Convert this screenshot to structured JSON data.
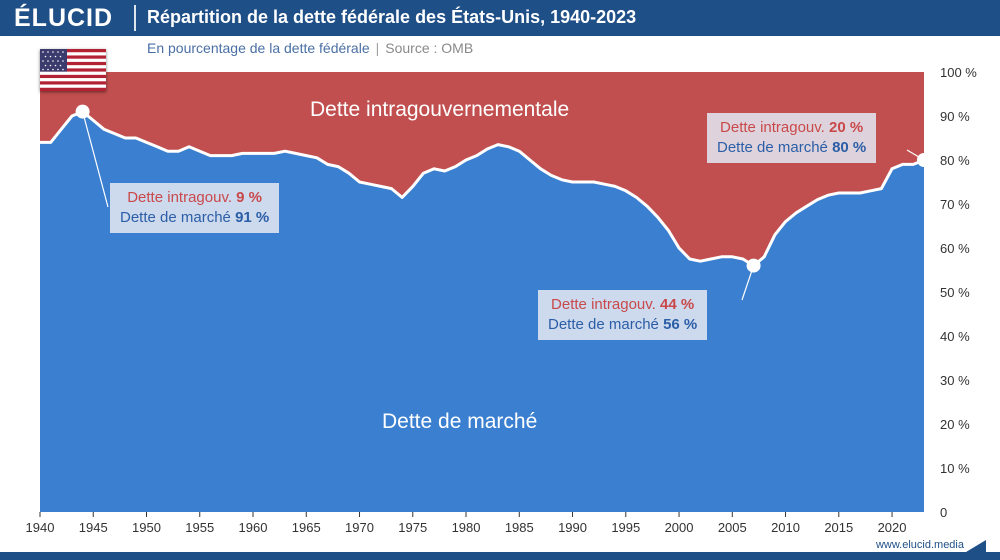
{
  "brand": {
    "logo_text": "ÉLUCID",
    "website": "www.elucid.media"
  },
  "header": {
    "title": "Répartition de la dette fédérale des États-Unis, 1940-2023",
    "subtitle": "En pourcentage de la dette fédérale",
    "source": "Source : OMB"
  },
  "colors": {
    "header": "#1f4f87",
    "market": "#3a7fd0",
    "intragov": "#c24f4f",
    "line": "#ffffff"
  },
  "flag_icon": "us-flag-icon",
  "area_labels": {
    "top": "Dette intragouvernementale",
    "bottom": "Dette de marché"
  },
  "annotations": [
    {
      "line1": "Dette intragouv. ",
      "v1": "9 %",
      "line2": "Dette de marché ",
      "v2": "91 %",
      "year": 1944
    },
    {
      "line1": "Dette intragouv. ",
      "v1": "44 %",
      "line2": "Dette de marché ",
      "v2": "56 %",
      "year": 2007
    },
    {
      "line1": "Dette intragouv. ",
      "v1": "20 %",
      "line2": "Dette de marché ",
      "v2": "80 %",
      "year": 2023
    }
  ],
  "chart_data": {
    "type": "area",
    "title": "Répartition de la dette fédérale des États-Unis, 1940-2023",
    "subtitle": "En pourcentage de la dette fédérale",
    "xlim": [
      1940,
      2023
    ],
    "ylim": [
      0,
      100
    ],
    "x_ticks": [
      1940,
      1945,
      1950,
      1955,
      1960,
      1965,
      1970,
      1975,
      1980,
      1985,
      1990,
      1995,
      2000,
      2005,
      2010,
      2015,
      2020
    ],
    "y_ticks": [
      "0",
      "10 %",
      "20 %",
      "30 %",
      "40 %",
      "50 %",
      "60 %",
      "70 %",
      "80 %",
      "90 %",
      "100 %"
    ],
    "y_tick_values": [
      0,
      10,
      20,
      30,
      40,
      50,
      60,
      70,
      80,
      90,
      100
    ],
    "x": [
      1940,
      1941,
      1942,
      1943,
      1944,
      1945,
      1946,
      1947,
      1948,
      1949,
      1950,
      1951,
      1952,
      1953,
      1954,
      1955,
      1956,
      1957,
      1958,
      1959,
      1960,
      1961,
      1962,
      1963,
      1964,
      1965,
      1966,
      1967,
      1968,
      1969,
      1970,
      1971,
      1972,
      1973,
      1974,
      1975,
      1976,
      1977,
      1978,
      1979,
      1980,
      1981,
      1982,
      1983,
      1984,
      1985,
      1986,
      1987,
      1988,
      1989,
      1990,
      1991,
      1992,
      1993,
      1994,
      1995,
      1996,
      1997,
      1998,
      1999,
      2000,
      2001,
      2002,
      2003,
      2004,
      2005,
      2006,
      2007,
      2008,
      2009,
      2010,
      2011,
      2012,
      2013,
      2014,
      2015,
      2016,
      2017,
      2018,
      2019,
      2020,
      2021,
      2022,
      2023
    ],
    "series": [
      {
        "name": "Dette de marché",
        "values": [
          84,
          84,
          87,
          90,
          91,
          89,
          87,
          86,
          85,
          85,
          84,
          83,
          82,
          82,
          83,
          82,
          81,
          81,
          81,
          81.5,
          81.5,
          81.5,
          81.5,
          82,
          81.5,
          81,
          80.5,
          79,
          78.5,
          77,
          75,
          74.5,
          74,
          73.5,
          71.5,
          74,
          77,
          78,
          77.5,
          78.5,
          80,
          81,
          82.5,
          83.5,
          83,
          82,
          80,
          78,
          76.5,
          75.5,
          75,
          75,
          75,
          74.5,
          74,
          73,
          71.5,
          69.5,
          67,
          64,
          60,
          57.5,
          57,
          57.5,
          58,
          58,
          57.5,
          56,
          58,
          63,
          66,
          68,
          69.5,
          71,
          72,
          72.5,
          72.5,
          72.5,
          73,
          73.5,
          78,
          79,
          79,
          80
        ]
      },
      {
        "name": "Dette intragouvernementale",
        "values": [
          16,
          16,
          13,
          10,
          9,
          11,
          13,
          14,
          15,
          15,
          16,
          17,
          18,
          18,
          17,
          18,
          19,
          19,
          19,
          18.5,
          18.5,
          18.5,
          18.5,
          18,
          18.5,
          19,
          19.5,
          21,
          21.5,
          23,
          25,
          25.5,
          26,
          26.5,
          28.5,
          26,
          23,
          22,
          22.5,
          21.5,
          20,
          19,
          17.5,
          16.5,
          17,
          18,
          20,
          22,
          23.5,
          24.5,
          25,
          25,
          25,
          25.5,
          26,
          27,
          28.5,
          30.5,
          33,
          36,
          40,
          42.5,
          43,
          42.5,
          42,
          42,
          42.5,
          44,
          42,
          37,
          34,
          32,
          30.5,
          29,
          28,
          27.5,
          27.5,
          27.5,
          27,
          26.5,
          22,
          21,
          21,
          20
        ]
      }
    ]
  }
}
